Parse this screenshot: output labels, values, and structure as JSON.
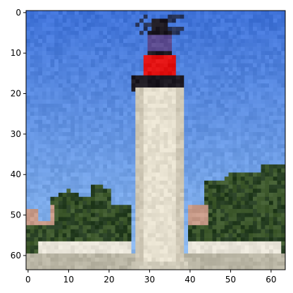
{
  "figure": {
    "x_ticks": [
      "0",
      "10",
      "20",
      "30",
      "40",
      "50",
      "60"
    ],
    "y_ticks": [
      "0",
      "10",
      "20",
      "30",
      "40",
      "50",
      "60"
    ]
  },
  "image": {
    "grid_size": 64,
    "subject": "lighthouse",
    "colors": {
      "sky_top": "#3f72d8",
      "sky_bottom": "#8ab7ec",
      "tower": "#e6e0cf",
      "tower_shadow": "#cfc8b6",
      "lantern_red": "#e01010",
      "lantern_purple": "#5c4b8f",
      "lantern_dark": "#1c1820",
      "trees_dark": "#253d21",
      "trees_mid": "#3f5a2e",
      "building": "#c79a88",
      "ground": "#b9b5a4",
      "fence": "#e8e4d8"
    }
  }
}
